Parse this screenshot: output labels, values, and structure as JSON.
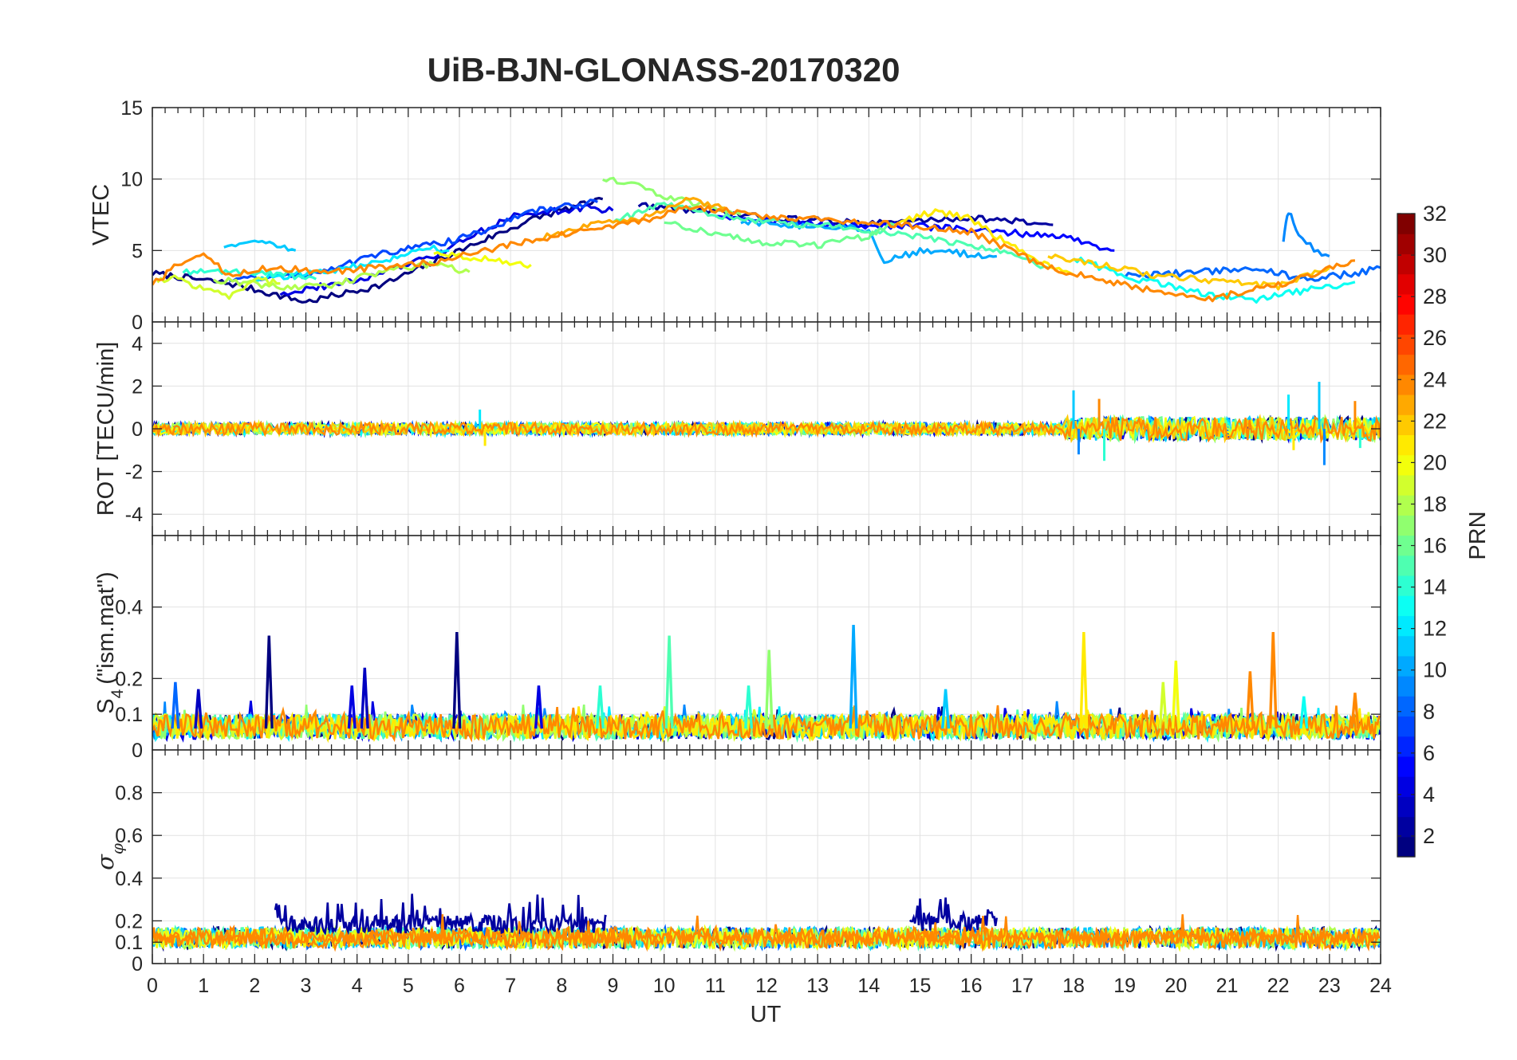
{
  "figure": {
    "title": "UiB-BJN-GLONASS-20170320",
    "xlabel": "UT"
  },
  "colorbar": {
    "label": "PRN",
    "range": [
      1,
      32
    ],
    "ticks": [
      2,
      4,
      6,
      8,
      10,
      12,
      14,
      16,
      18,
      20,
      22,
      24,
      26,
      28,
      30,
      32
    ],
    "colormap": "jet",
    "levels": 32
  },
  "chart_data": [
    {
      "type": "line",
      "panel": "vtec",
      "ylabel": "VTEC",
      "xlim": [
        0,
        24
      ],
      "ylim": [
        0,
        15
      ],
      "yticks": [
        0,
        5,
        10,
        15
      ],
      "xticks": [
        0,
        1,
        2,
        3,
        4,
        5,
        6,
        7,
        8,
        9,
        10,
        11,
        12,
        13,
        14,
        15,
        16,
        17,
        18,
        19,
        20,
        21,
        22,
        23,
        24
      ],
      "grid": true,
      "series": [
        {
          "prn": 1,
          "x": [
            0,
            1.5,
            3,
            4.5,
            6,
            7.5,
            8.8
          ],
          "y": [
            3.4,
            2.7,
            1.4,
            2.6,
            5.0,
            7.3,
            8.6
          ]
        },
        {
          "prn": 2,
          "x": [
            9.5,
            12,
            14,
            16,
            17.6
          ],
          "y": [
            8.2,
            7.3,
            6.9,
            7.3,
            6.8
          ]
        },
        {
          "prn": 4,
          "x": [
            2.5,
            4,
            5.5,
            7,
            8.5,
            9
          ],
          "y": [
            2.0,
            2.9,
            4.6,
            7.4,
            8.0,
            7.8
          ]
        },
        {
          "prn": 5,
          "x": [
            11,
            13,
            15,
            16.5,
            17.8,
            18.8
          ],
          "y": [
            7.5,
            6.8,
            6.7,
            6.3,
            6.0,
            5.0
          ]
        },
        {
          "prn": 7,
          "x": [
            1.5,
            3,
            4.5,
            6,
            7.5,
            8.7
          ],
          "y": [
            3.0,
            3.3,
            4.8,
            5.8,
            7.8,
            8.4
          ]
        },
        {
          "prn": 8,
          "x": [
            19,
            20.5,
            21.5,
            22.5,
            23.5,
            24
          ],
          "y": [
            3.2,
            3.5,
            3.8,
            3.0,
            3.4,
            3.8
          ]
        },
        {
          "prn": 9,
          "x": [
            22.1,
            22.2,
            22.4,
            22.7,
            23
          ],
          "y": [
            5.7,
            7.8,
            6.0,
            5.1,
            4.6
          ]
        },
        {
          "prn": 10,
          "x": [
            11.5,
            13,
            14,
            14.3,
            15,
            16.5
          ],
          "y": [
            7.0,
            6.7,
            6.5,
            4.2,
            5.0,
            4.6
          ]
        },
        {
          "prn": 11,
          "x": [
            1.4,
            2.0,
            2.8
          ],
          "y": [
            5.3,
            5.8,
            5.0
          ]
        },
        {
          "prn": 12,
          "x": [
            2,
            3.5,
            4.5,
            5.5,
            5.8
          ],
          "y": [
            3.0,
            3.6,
            4.2,
            5.2,
            5.0
          ]
        },
        {
          "prn": 13,
          "x": [
            18,
            19,
            20.5,
            21.5,
            22.5,
            23.5
          ],
          "y": [
            4.5,
            3.2,
            2.0,
            1.5,
            2.2,
            2.8
          ]
        },
        {
          "prn": 14,
          "x": [
            0.6,
            1.5,
            2.5,
            3.2
          ],
          "y": [
            3.5,
            3.6,
            3.4,
            3.0
          ]
        },
        {
          "prn": 15,
          "x": [
            9,
            10,
            11,
            12,
            13,
            14,
            15,
            16.5,
            17.5
          ],
          "y": [
            7.0,
            8.3,
            7.5,
            7.0,
            6.8,
            6.3,
            6.0,
            5.0,
            3.8
          ]
        },
        {
          "prn": 16,
          "x": [
            10,
            11,
            12,
            13,
            14,
            14.5
          ],
          "y": [
            7.0,
            6.2,
            5.5,
            5.4,
            6.0,
            6.8
          ]
        },
        {
          "prn": 17,
          "x": [
            8.8,
            9.5,
            10.2,
            11,
            11.5
          ],
          "y": [
            10.0,
            9.5,
            8.6,
            8.0,
            7.5
          ]
        },
        {
          "prn": 18,
          "x": [
            1.2,
            2.5,
            3.5,
            4.5,
            5.5,
            6.2
          ],
          "y": [
            3.0,
            2.4,
            2.6,
            3.5,
            4.0,
            3.5
          ]
        },
        {
          "prn": 19,
          "x": [
            0.1,
            0.5,
            1.0,
            1.5,
            2.0,
            2.5
          ],
          "y": [
            2.8,
            3.2,
            2.2,
            1.8,
            3.0,
            2.7
          ]
        },
        {
          "prn": 20,
          "x": [
            5.5,
            6.5,
            7.4
          ],
          "y": [
            4.8,
            4.4,
            4.0
          ]
        },
        {
          "prn": 21,
          "x": [
            14.5,
            15.3,
            16,
            16.5,
            17,
            17.5,
            18
          ],
          "y": [
            6.8,
            7.8,
            7.2,
            6.0,
            4.8,
            4.0,
            3.3
          ]
        },
        {
          "prn": 22,
          "x": [
            17.5,
            18.5,
            19.5,
            20.5,
            21.5,
            22,
            23
          ],
          "y": [
            4.6,
            4.0,
            3.3,
            3.0,
            2.6,
            2.5,
            3.8
          ]
        },
        {
          "prn": 23,
          "x": [
            7.5,
            8.5,
            9.5,
            10.5,
            11.2
          ],
          "y": [
            5.8,
            6.8,
            7.2,
            8.6,
            8.0
          ]
        },
        {
          "prn": 24,
          "x": [
            0,
            0.5,
            1.0,
            1.5,
            2.3,
            3.5,
            5.5,
            7.5,
            9.5,
            10.5,
            12,
            14,
            16,
            17.5,
            19,
            20.5,
            22,
            23.5
          ],
          "y": [
            2.6,
            4.0,
            4.9,
            3.2,
            3.8,
            3.5,
            4.2,
            5.8,
            7.0,
            8.1,
            7.4,
            7.0,
            6.3,
            3.8,
            2.6,
            1.5,
            2.6,
            4.3
          ]
        }
      ]
    },
    {
      "type": "line",
      "panel": "rot",
      "ylabel": "ROT [TECU/min]",
      "xlim": [
        0,
        24
      ],
      "ylim": [
        -5,
        5
      ],
      "yticks": [
        -4,
        -2,
        0,
        2,
        4
      ],
      "grid": true,
      "baseline": 0,
      "noise": {
        "typical_amplitude": 0.3,
        "peak_amplitude": 1.8
      },
      "peaks": [
        {
          "x": 6.4,
          "y": 0.9
        },
        {
          "x": 6.5,
          "y": -0.8
        },
        {
          "x": 18.0,
          "y": 1.8
        },
        {
          "x": 18.1,
          "y": -1.2
        },
        {
          "x": 18.5,
          "y": 1.4
        },
        {
          "x": 18.6,
          "y": -1.5
        },
        {
          "x": 22.2,
          "y": 1.6
        },
        {
          "x": 22.3,
          "y": -1.0
        },
        {
          "x": 22.8,
          "y": 2.2
        },
        {
          "x": 22.9,
          "y": -1.7
        },
        {
          "x": 23.5,
          "y": 1.3
        },
        {
          "x": 23.6,
          "y": -0.9
        }
      ]
    },
    {
      "type": "line",
      "panel": "s4",
      "ylabel": "S4 (\"ism.mat\")",
      "xlim": [
        0,
        24
      ],
      "ylim": [
        0,
        0.6
      ],
      "yticks": [
        0,
        0.1,
        0.2,
        0.4
      ],
      "grid": true,
      "baseline_range": [
        0.03,
        0.1
      ],
      "peaks": [
        {
          "x": 0.45,
          "y": 0.19,
          "prn": 8
        },
        {
          "x": 0.9,
          "y": 0.17,
          "prn": 3
        },
        {
          "x": 2.28,
          "y": 0.32,
          "prn": 1
        },
        {
          "x": 3.9,
          "y": 0.18,
          "prn": 4
        },
        {
          "x": 4.15,
          "y": 0.23,
          "prn": 3
        },
        {
          "x": 5.95,
          "y": 0.33,
          "prn": 1
        },
        {
          "x": 7.55,
          "y": 0.18,
          "prn": 4
        },
        {
          "x": 8.75,
          "y": 0.18,
          "prn": 14
        },
        {
          "x": 10.1,
          "y": 0.32,
          "prn": 15
        },
        {
          "x": 11.65,
          "y": 0.18,
          "prn": 14
        },
        {
          "x": 12.05,
          "y": 0.28,
          "prn": 17
        },
        {
          "x": 13.7,
          "y": 0.35,
          "prn": 10
        },
        {
          "x": 15.5,
          "y": 0.17,
          "prn": 11
        },
        {
          "x": 18.2,
          "y": 0.33,
          "prn": 21
        },
        {
          "x": 19.75,
          "y": 0.19,
          "prn": 19
        },
        {
          "x": 20.0,
          "y": 0.25,
          "prn": 20
        },
        {
          "x": 21.45,
          "y": 0.22,
          "prn": 24
        },
        {
          "x": 21.9,
          "y": 0.33,
          "prn": 24
        },
        {
          "x": 22.5,
          "y": 0.15,
          "prn": 13
        },
        {
          "x": 23.5,
          "y": 0.16,
          "prn": 24
        }
      ]
    },
    {
      "type": "line",
      "panel": "sigma_phi",
      "ylabel": "σ φ",
      "xlim": [
        0,
        24
      ],
      "ylim": [
        0,
        1
      ],
      "yticks": [
        0,
        0.1,
        0.2,
        0.4,
        0.6,
        0.8
      ],
      "grid": true,
      "baseline_range": [
        0.07,
        0.17
      ],
      "elevated_segments": [
        {
          "prn": 2,
          "x": [
            2.4,
            8.9
          ],
          "y_range": [
            0.14,
            0.33
          ]
        },
        {
          "prn": 2,
          "x": [
            14.8,
            16.5
          ],
          "y_range": [
            0.15,
            0.35
          ]
        }
      ]
    }
  ]
}
